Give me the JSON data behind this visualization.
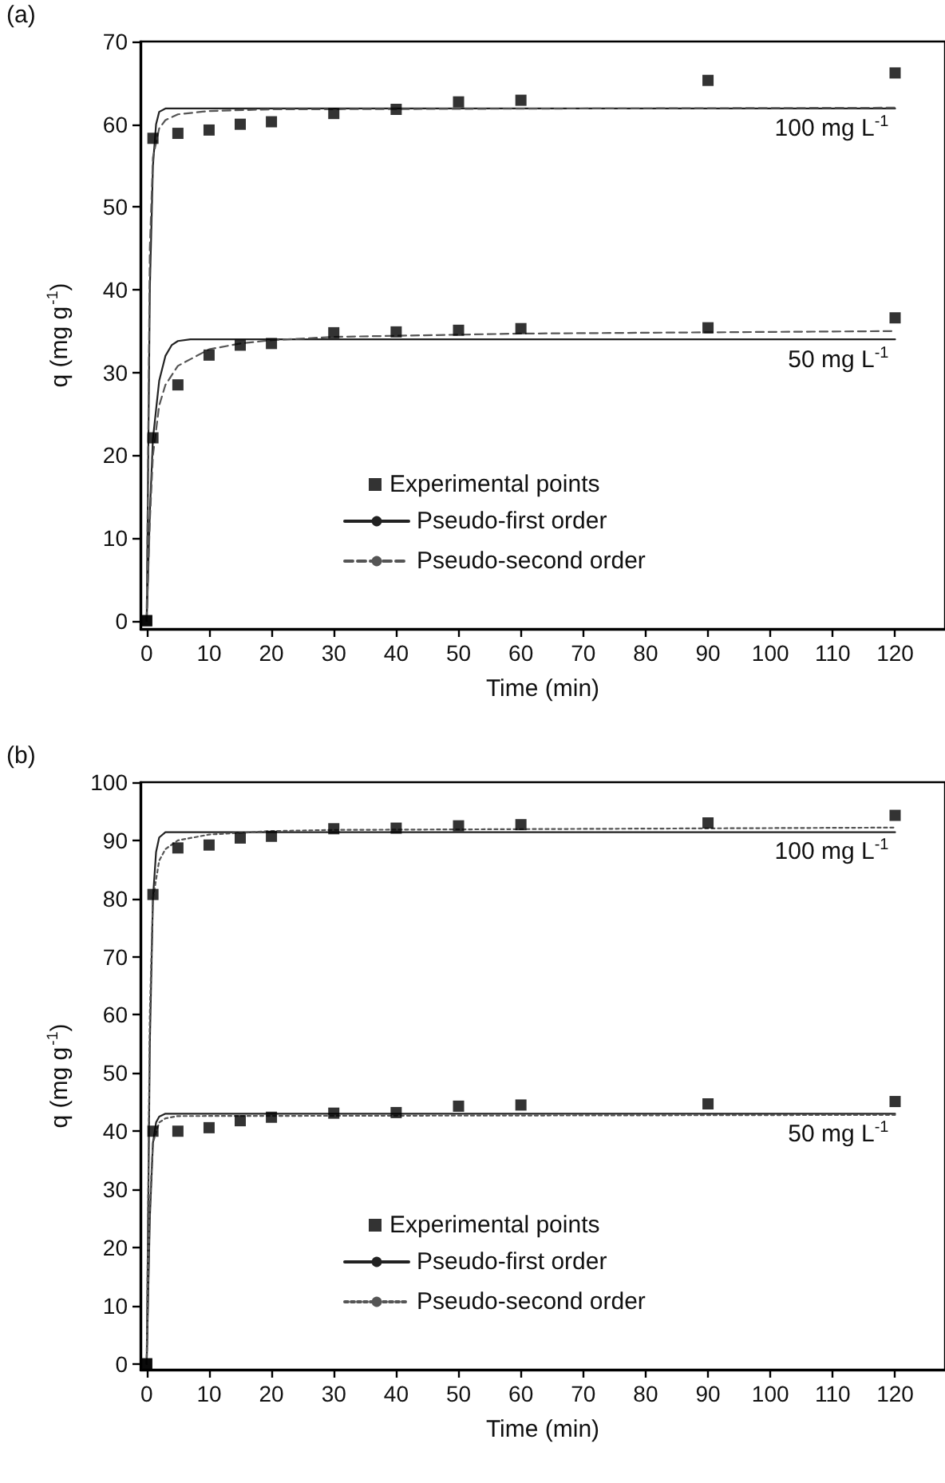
{
  "chart_data": [
    {
      "type": "scatter",
      "title": "(a)",
      "xlabel": "Time (min)",
      "ylabel": "q (mg g$^{-1}$)",
      "xlim": [
        -1,
        128
      ],
      "ylim": [
        -1,
        70
      ],
      "xticks": [
        0,
        10,
        20,
        30,
        40,
        50,
        60,
        70,
        80,
        90,
        100,
        110,
        120
      ],
      "yticks": [
        0,
        10,
        20,
        30,
        40,
        50,
        60,
        70
      ],
      "grid": false,
      "legend": "bottom",
      "marker": "square",
      "series": [
        {
          "name": "Experimental points",
          "color": "#000000",
          "x": [
            0,
            1,
            5,
            10,
            15,
            20,
            30,
            40,
            50,
            60,
            90,
            120
          ],
          "values": [
            0,
            58.3,
            58.9,
            59.3,
            60.0,
            60.3,
            61.3,
            61.8,
            62.7,
            62.9,
            65.3,
            66.2
          ]
        },
        {
          "color": "#000000",
          "x": [
            0,
            1,
            5,
            10,
            15,
            20,
            30,
            40,
            50,
            60,
            90,
            120
          ],
          "values": [
            0,
            22.1,
            28.5,
            32.1,
            33.3,
            33.5,
            34.8,
            34.9,
            35.1,
            35.3,
            35.4,
            36.6
          ]
        },
        {
          "name": "Pseudo-first order",
          "type": "line",
          "line_style": "solid",
          "marker": "none",
          "color": "#222222",
          "x": [
            0,
            0.5,
            1,
            1.5,
            2,
            3,
            120
          ],
          "values": [
            0,
            40,
            55,
            60,
            61.5,
            61.9,
            61.9
          ]
        },
        {
          "type": "line",
          "line_style": "solid",
          "marker": "none",
          "color": "#222222",
          "x": [
            0,
            0.5,
            1,
            2,
            3,
            4,
            5,
            7,
            120
          ],
          "values": [
            0,
            13,
            22,
            29,
            32,
            33.3,
            33.8,
            34.0,
            34.0
          ]
        },
        {
          "name": "Pseudo-second order",
          "type": "line",
          "line_style": "dashed",
          "marker": "none",
          "color": "#555555",
          "x": [
            0,
            0.5,
            1,
            2,
            3,
            5,
            10,
            20,
            120
          ],
          "values": [
            0,
            45,
            56,
            59.5,
            60.5,
            61.2,
            61.6,
            61.8,
            62.0
          ]
        },
        {
          "type": "line",
          "line_style": "dashed",
          "marker": "none",
          "color": "#555555",
          "x": [
            0,
            0.5,
            1,
            2,
            3,
            5,
            10,
            15,
            20,
            30,
            60,
            120
          ],
          "values": [
            0,
            12,
            20,
            26,
            28.5,
            30.8,
            32.8,
            33.5,
            33.9,
            34.3,
            34.7,
            35.0
          ]
        }
      ],
      "annotations": [
        "100 mg L$^{-1}$",
        "50 mg L$^{-1}$"
      ]
    },
    {
      "type": "scatter",
      "title": "(b)",
      "xlabel": "Time (min)",
      "ylabel": "q (mg g$^{-1}$)",
      "xlim": [
        -1,
        128
      ],
      "ylim": [
        -1,
        100
      ],
      "xticks": [
        0,
        10,
        20,
        30,
        40,
        50,
        60,
        70,
        80,
        90,
        100,
        110,
        120
      ],
      "yticks": [
        0,
        10,
        20,
        30,
        40,
        50,
        60,
        70,
        80,
        90,
        100
      ],
      "grid": false,
      "legend": "bottom",
      "marker": "square",
      "series": [
        {
          "name": "Experimental points",
          "color": "#000000",
          "x": [
            0,
            1,
            5,
            10,
            15,
            20,
            30,
            40,
            50,
            60,
            90,
            120
          ],
          "values": [
            0,
            80.7,
            88.7,
            89.2,
            90.4,
            90.7,
            92.0,
            92.1,
            92.5,
            92.7,
            93.0,
            94.3
          ]
        },
        {
          "color": "#000000",
          "x": [
            0,
            1,
            5,
            10,
            15,
            20,
            30,
            40,
            50,
            60,
            90,
            120
          ],
          "values": [
            0,
            40.0,
            40.0,
            40.6,
            41.8,
            42.4,
            43.1,
            43.2,
            44.3,
            44.5,
            44.7,
            45.1
          ]
        },
        {
          "name": "Pseudo-first order",
          "type": "line",
          "line_style": "solid",
          "marker": "none",
          "color": "#222222",
          "x": [
            0,
            0.5,
            1,
            1.5,
            2,
            3,
            120
          ],
          "values": [
            0,
            55,
            80,
            88,
            90.5,
            91.4,
            91.4
          ]
        },
        {
          "type": "line",
          "line_style": "solid",
          "marker": "none",
          "color": "#222222",
          "x": [
            0,
            0.5,
            1,
            1.5,
            2,
            3,
            120
          ],
          "values": [
            0,
            25,
            38,
            41.5,
            42.5,
            43,
            43
          ]
        },
        {
          "name": "Pseudo-second order",
          "type": "line",
          "line_style": "dotted",
          "marker": "none",
          "color": "#555555",
          "x": [
            0,
            0.5,
            1,
            2,
            3,
            5,
            10,
            20,
            30,
            120
          ],
          "values": [
            0,
            60,
            80,
            86.5,
            88.5,
            90,
            91,
            91.6,
            91.8,
            92.2
          ]
        },
        {
          "type": "line",
          "line_style": "dotted",
          "marker": "none",
          "color": "#555555",
          "x": [
            0,
            0.5,
            1,
            2,
            3,
            5,
            120
          ],
          "values": [
            0,
            27,
            38,
            41.5,
            42.2,
            42.6,
            42.8
          ]
        }
      ],
      "annotations": [
        "100 mg L$^{-1}$",
        "50 mg L$^{-1}$"
      ]
    }
  ]
}
